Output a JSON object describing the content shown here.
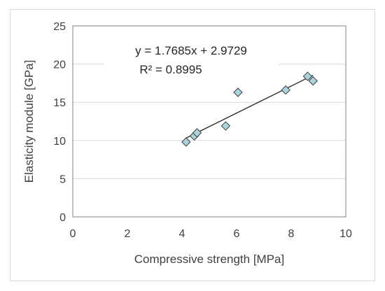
{
  "chart_data": {
    "type": "scatter",
    "xlabel": "Compressive strength [MPa]",
    "ylabel": "Elasticity module  [GPa]",
    "xlim": [
      0,
      10
    ],
    "ylim": [
      0,
      25
    ],
    "xticks": [
      "0",
      "2",
      "4",
      "6",
      "8",
      "10"
    ],
    "yticks": [
      "0",
      "5",
      "10",
      "15",
      "20",
      "25"
    ],
    "grid": "horizontal",
    "marker": "diamond",
    "marker_color": "#a9d4df",
    "points": [
      {
        "x": 4.15,
        "y": 9.8
      },
      {
        "x": 4.45,
        "y": 10.6
      },
      {
        "x": 4.55,
        "y": 11.0
      },
      {
        "x": 5.6,
        "y": 11.9
      },
      {
        "x": 6.05,
        "y": 16.3
      },
      {
        "x": 7.8,
        "y": 16.6
      },
      {
        "x": 8.6,
        "y": 18.4
      },
      {
        "x": 8.8,
        "y": 17.8
      }
    ],
    "trendline": {
      "slope": 1.7685,
      "intercept": 2.9729,
      "x_range": [
        4.15,
        8.8
      ],
      "equation": "y = 1.7685x + 2.9729",
      "r_squared": "R² = 0.8995"
    }
  }
}
